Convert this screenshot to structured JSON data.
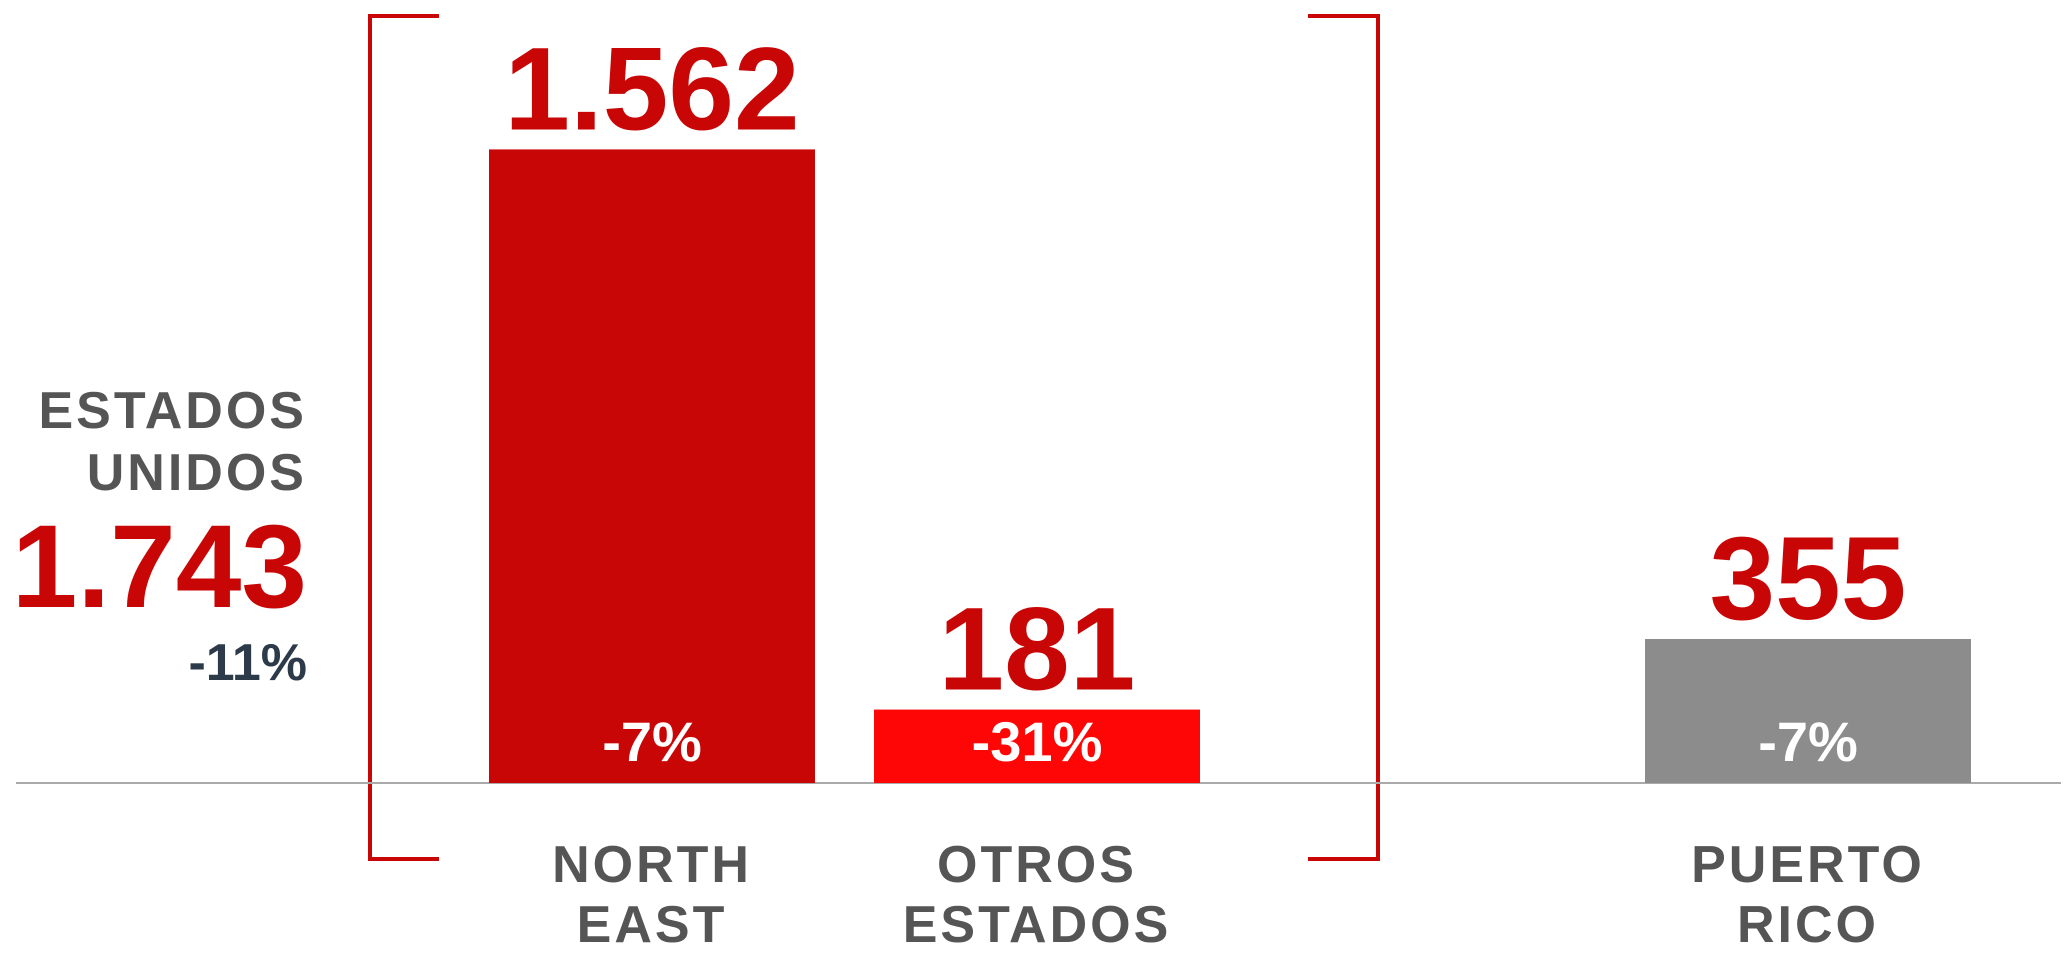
{
  "chart_data": {
    "type": "bar",
    "categories": [
      "NORTH EAST",
      "OTROS ESTADOS",
      "PUERTO RICO"
    ],
    "values": [
      1562,
      181,
      355
    ],
    "value_labels": [
      "1.562",
      "181",
      "355"
    ],
    "changes": [
      -7,
      -31,
      -7
    ],
    "change_labels": [
      "-7%",
      "-31%",
      "-7%"
    ],
    "colors": [
      "#c80606",
      "#fe0606",
      "#8c8c8c"
    ],
    "ylim": [
      0,
      1600
    ],
    "annotation": {
      "label": "ESTADOS UNIDOS",
      "value": 1743,
      "value_label": "1.743",
      "change": -11,
      "change_label": "-11%"
    }
  }
}
